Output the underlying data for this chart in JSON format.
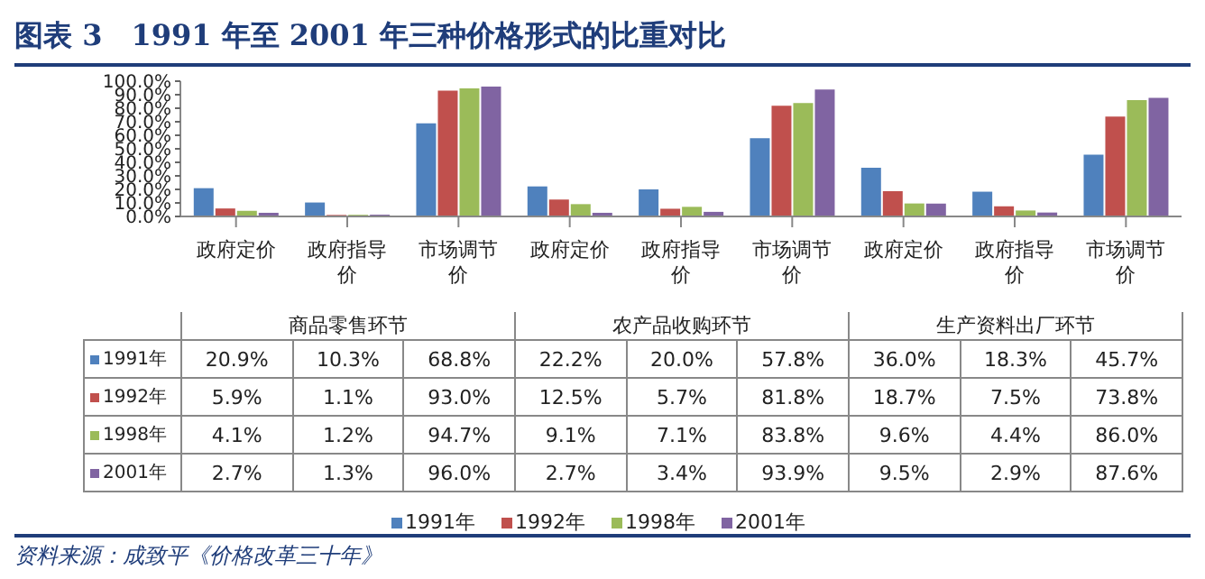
{
  "chart_data": {
    "type": "bar",
    "title": "图表 3　1991 年至 2001 年三种价格形式的比重对比",
    "categories": [
      "政府定价",
      "政府指导价",
      "市场调节价",
      "政府定价",
      "政府指导价",
      "市场调节价",
      "政府定价",
      "政府指导价",
      "市场调节价"
    ],
    "series": [
      {
        "name": "1991年",
        "color": "#4f81bd",
        "values": [
          20.9,
          10.3,
          68.8,
          22.2,
          20.0,
          57.8,
          36.0,
          18.3,
          45.7
        ],
        "value_labels": [
          "20.9%",
          "10.3%",
          "68.8%",
          "22.2%",
          "20.0%",
          "57.8%",
          "36.0%",
          "18.3%",
          "45.7%"
        ]
      },
      {
        "name": "1992年",
        "color": "#c0504d",
        "values": [
          5.9,
          1.1,
          93.0,
          12.5,
          5.7,
          81.8,
          18.7,
          7.5,
          73.8
        ],
        "value_labels": [
          "5.9%",
          "1.1%",
          "93.0%",
          "12.5%",
          "5.7%",
          "81.8%",
          "18.7%",
          "7.5%",
          "73.8%"
        ]
      },
      {
        "name": "1998年",
        "color": "#9bbb59",
        "values": [
          4.1,
          1.2,
          94.7,
          9.1,
          7.1,
          83.8,
          9.6,
          4.4,
          86.0
        ],
        "value_labels": [
          "4.1%",
          "1.2%",
          "94.7%",
          "9.1%",
          "7.1%",
          "83.8%",
          "9.6%",
          "4.4%",
          "86.0%"
        ]
      },
      {
        "name": "2001年",
        "color": "#8064a2",
        "values": [
          2.7,
          1.3,
          96.0,
          2.7,
          3.4,
          93.9,
          9.5,
          2.9,
          87.6
        ],
        "value_labels": [
          "2.7%",
          "1.3%",
          "96.0%",
          "2.7%",
          "3.4%",
          "93.9%",
          "9.5%",
          "2.9%",
          "87.6%"
        ]
      }
    ],
    "ylim": [
      0,
      100
    ],
    "yticks": [
      {
        "value": 0,
        "label": "0.0%"
      },
      {
        "value": 10,
        "label": "10.0%"
      },
      {
        "value": 20,
        "label": "20.0%"
      },
      {
        "value": 30,
        "label": "30.0%"
      },
      {
        "value": 40,
        "label": "40.0%"
      },
      {
        "value": 50,
        "label": "50.0%"
      },
      {
        "value": 60,
        "label": "60.0%"
      },
      {
        "value": 70,
        "label": "70.0%"
      },
      {
        "value": 80,
        "label": "80.0%"
      },
      {
        "value": 90,
        "label": "90.0%"
      },
      {
        "value": 100,
        "label": "100.0%"
      }
    ],
    "grid": false,
    "legend": "bottom",
    "annotations": [
      "商品零售环节",
      "农产品收购环节",
      "生产资料出厂环节",
      "资料来源：成致平《价格改革三十年》"
    ]
  }
}
